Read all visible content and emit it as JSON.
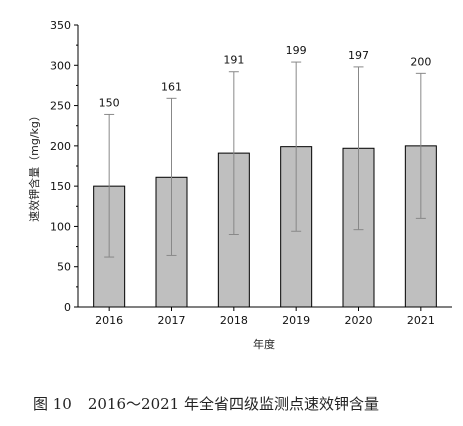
{
  "chart_data": {
    "type": "bar",
    "categories": [
      "2016",
      "2017",
      "2018",
      "2019",
      "2020",
      "2021"
    ],
    "values": [
      150,
      161,
      191,
      199,
      197,
      200
    ],
    "error_high": [
      239,
      259,
      292,
      304,
      298,
      290
    ],
    "error_low": [
      62,
      64,
      90,
      94,
      96,
      110
    ],
    "data_labels": [
      "150",
      "161",
      "191",
      "199",
      "197",
      "200"
    ],
    "xlabel": "年度",
    "ylabel": "速效钾含量（mg/kg）",
    "ylim": [
      0,
      350
    ],
    "yticks": [
      0,
      50,
      100,
      150,
      200,
      250,
      300,
      350
    ],
    "grid": false,
    "bar_color": "#bfbfbf"
  },
  "caption": {
    "number": "图 10",
    "text": "2016～2021 年全省四级监测点速效钾含量"
  }
}
